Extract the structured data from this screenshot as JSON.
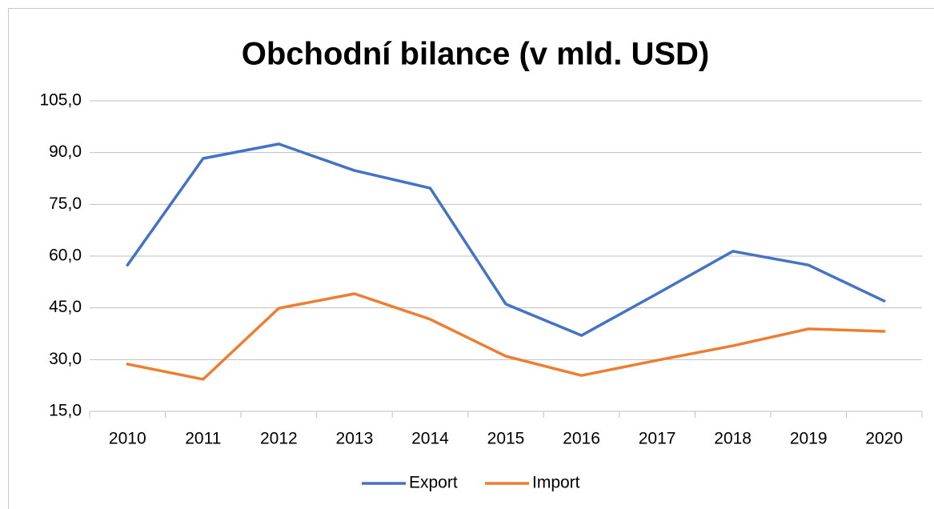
{
  "chart_data": {
    "type": "line",
    "title": "Obchodní bilance (v mld. USD)",
    "categories": [
      "2010",
      "2011",
      "2012",
      "2013",
      "2014",
      "2015",
      "2016",
      "2017",
      "2018",
      "2019",
      "2020"
    ],
    "series": [
      {
        "name": "Export",
        "color": "#4472c4",
        "values": [
          57.4,
          88.3,
          92.5,
          84.8,
          79.7,
          46.1,
          37.0,
          49.1,
          61.4,
          57.4,
          47.0
        ]
      },
      {
        "name": "Import",
        "color": "#ed7d31",
        "values": [
          28.7,
          24.3,
          44.9,
          49.1,
          41.7,
          31.0,
          25.4,
          29.8,
          34.0,
          38.9,
          38.2
        ]
      }
    ],
    "ylim": [
      15,
      105
    ],
    "yticks": [
      {
        "value": 15,
        "label": "15,0"
      },
      {
        "value": 30,
        "label": "30,0"
      },
      {
        "value": 45,
        "label": "45,0"
      },
      {
        "value": 60,
        "label": "60,0"
      },
      {
        "value": 75,
        "label": "75,0"
      },
      {
        "value": 90,
        "label": "90,0"
      },
      {
        "value": 105,
        "label": "105,0"
      }
    ],
    "grid": true,
    "legend": "bottom"
  }
}
